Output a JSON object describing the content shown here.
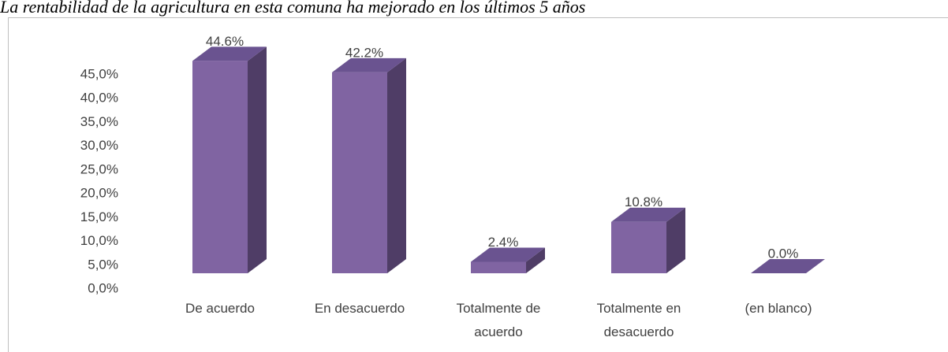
{
  "chart_data": {
    "type": "bar3d",
    "title": "La rentabilidad de la agricultura en esta comuna ha mejorado en los últimos 5 años",
    "categories": [
      "De acuerdo",
      "En desacuerdo",
      "Totalmente de acuerdo",
      "Totalmente en desacuerdo",
      "(en blanco)"
    ],
    "values": [
      44.6,
      42.2,
      2.4,
      10.8,
      0.0
    ],
    "value_labels": [
      "44.6%",
      "42.2%",
      "2.4%",
      "10.8%",
      "0.0%"
    ],
    "color": "#8064a2",
    "ylim": [
      0,
      45
    ],
    "yticks": [
      {
        "value": 0,
        "label": "0,0%"
      },
      {
        "value": 5,
        "label": "5,0%"
      },
      {
        "value": 10,
        "label": "10,0%"
      },
      {
        "value": 15,
        "label": "15,0%"
      },
      {
        "value": 20,
        "label": "20,0%"
      },
      {
        "value": 25,
        "label": "25,0%"
      },
      {
        "value": 30,
        "label": "30,0%"
      },
      {
        "value": 35,
        "label": "35,0%"
      },
      {
        "value": 40,
        "label": "40,0%"
      },
      {
        "value": 45,
        "label": "45,0%"
      }
    ],
    "grid": false
  }
}
